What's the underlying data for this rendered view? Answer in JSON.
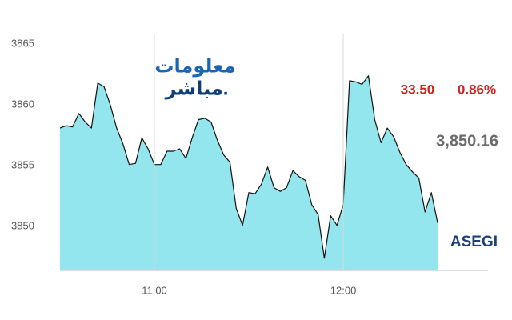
{
  "chart_data": {
    "type": "area",
    "x": [
      "10:30",
      "10:32",
      "10:34",
      "10:36",
      "10:38",
      "10:40",
      "10:42",
      "10:44",
      "10:46",
      "10:48",
      "10:50",
      "10:52",
      "10:54",
      "10:56",
      "10:58",
      "11:00",
      "11:02",
      "11:04",
      "11:06",
      "11:08",
      "11:10",
      "11:12",
      "11:14",
      "11:16",
      "11:18",
      "11:20",
      "11:22",
      "11:24",
      "11:26",
      "11:28",
      "11:30",
      "11:32",
      "11:34",
      "11:36",
      "11:38",
      "11:40",
      "11:42",
      "11:44",
      "11:46",
      "11:48",
      "11:50",
      "11:52",
      "11:54",
      "11:56",
      "11:58",
      "12:00",
      "12:02",
      "12:04",
      "12:06",
      "12:08",
      "12:10",
      "12:12",
      "12:14",
      "12:16",
      "12:18",
      "12:20",
      "12:22",
      "12:24",
      "12:26",
      "12:28",
      "12:30"
    ],
    "values": [
      3858.1,
      3858.3,
      3858.2,
      3859.3,
      3858.6,
      3858.1,
      3861.8,
      3861.5,
      3860.0,
      3858.1,
      3856.8,
      3855.1,
      3855.2,
      3857.3,
      3856.4,
      3855.1,
      3855.1,
      3856.2,
      3856.2,
      3856.4,
      3855.6,
      3857.3,
      3858.8,
      3858.9,
      3858.6,
      3857.1,
      3855.9,
      3855.3,
      3851.5,
      3850.1,
      3852.8,
      3852.7,
      3853.5,
      3854.9,
      3853.2,
      3852.9,
      3853.2,
      3854.6,
      3854.1,
      3853.8,
      3851.8,
      3851.0,
      3847.4,
      3850.9,
      3850.1,
      3851.8,
      3862.0,
      3861.9,
      3861.7,
      3862.4,
      3858.8,
      3856.9,
      3858.1,
      3857.4,
      3856.1,
      3855.1,
      3854.5,
      3854.0,
      3851.2,
      3852.8,
      3850.3
    ],
    "color": "#93e6ee",
    "line_color": "#111111",
    "xlim": [
      "10:30",
      "12:46"
    ],
    "xticks": [
      "11:00",
      "12:00"
    ],
    "ylim": [
      3846.4,
      3866
    ],
    "yticks": [
      3850,
      3855,
      3860,
      3865
    ],
    "grid": true,
    "logo": [
      "معلومات",
      "مباشر."
    ],
    "change": "33.50",
    "change_pct": "0.86%",
    "last": "3,850.16",
    "symbol": "ASEGI"
  }
}
